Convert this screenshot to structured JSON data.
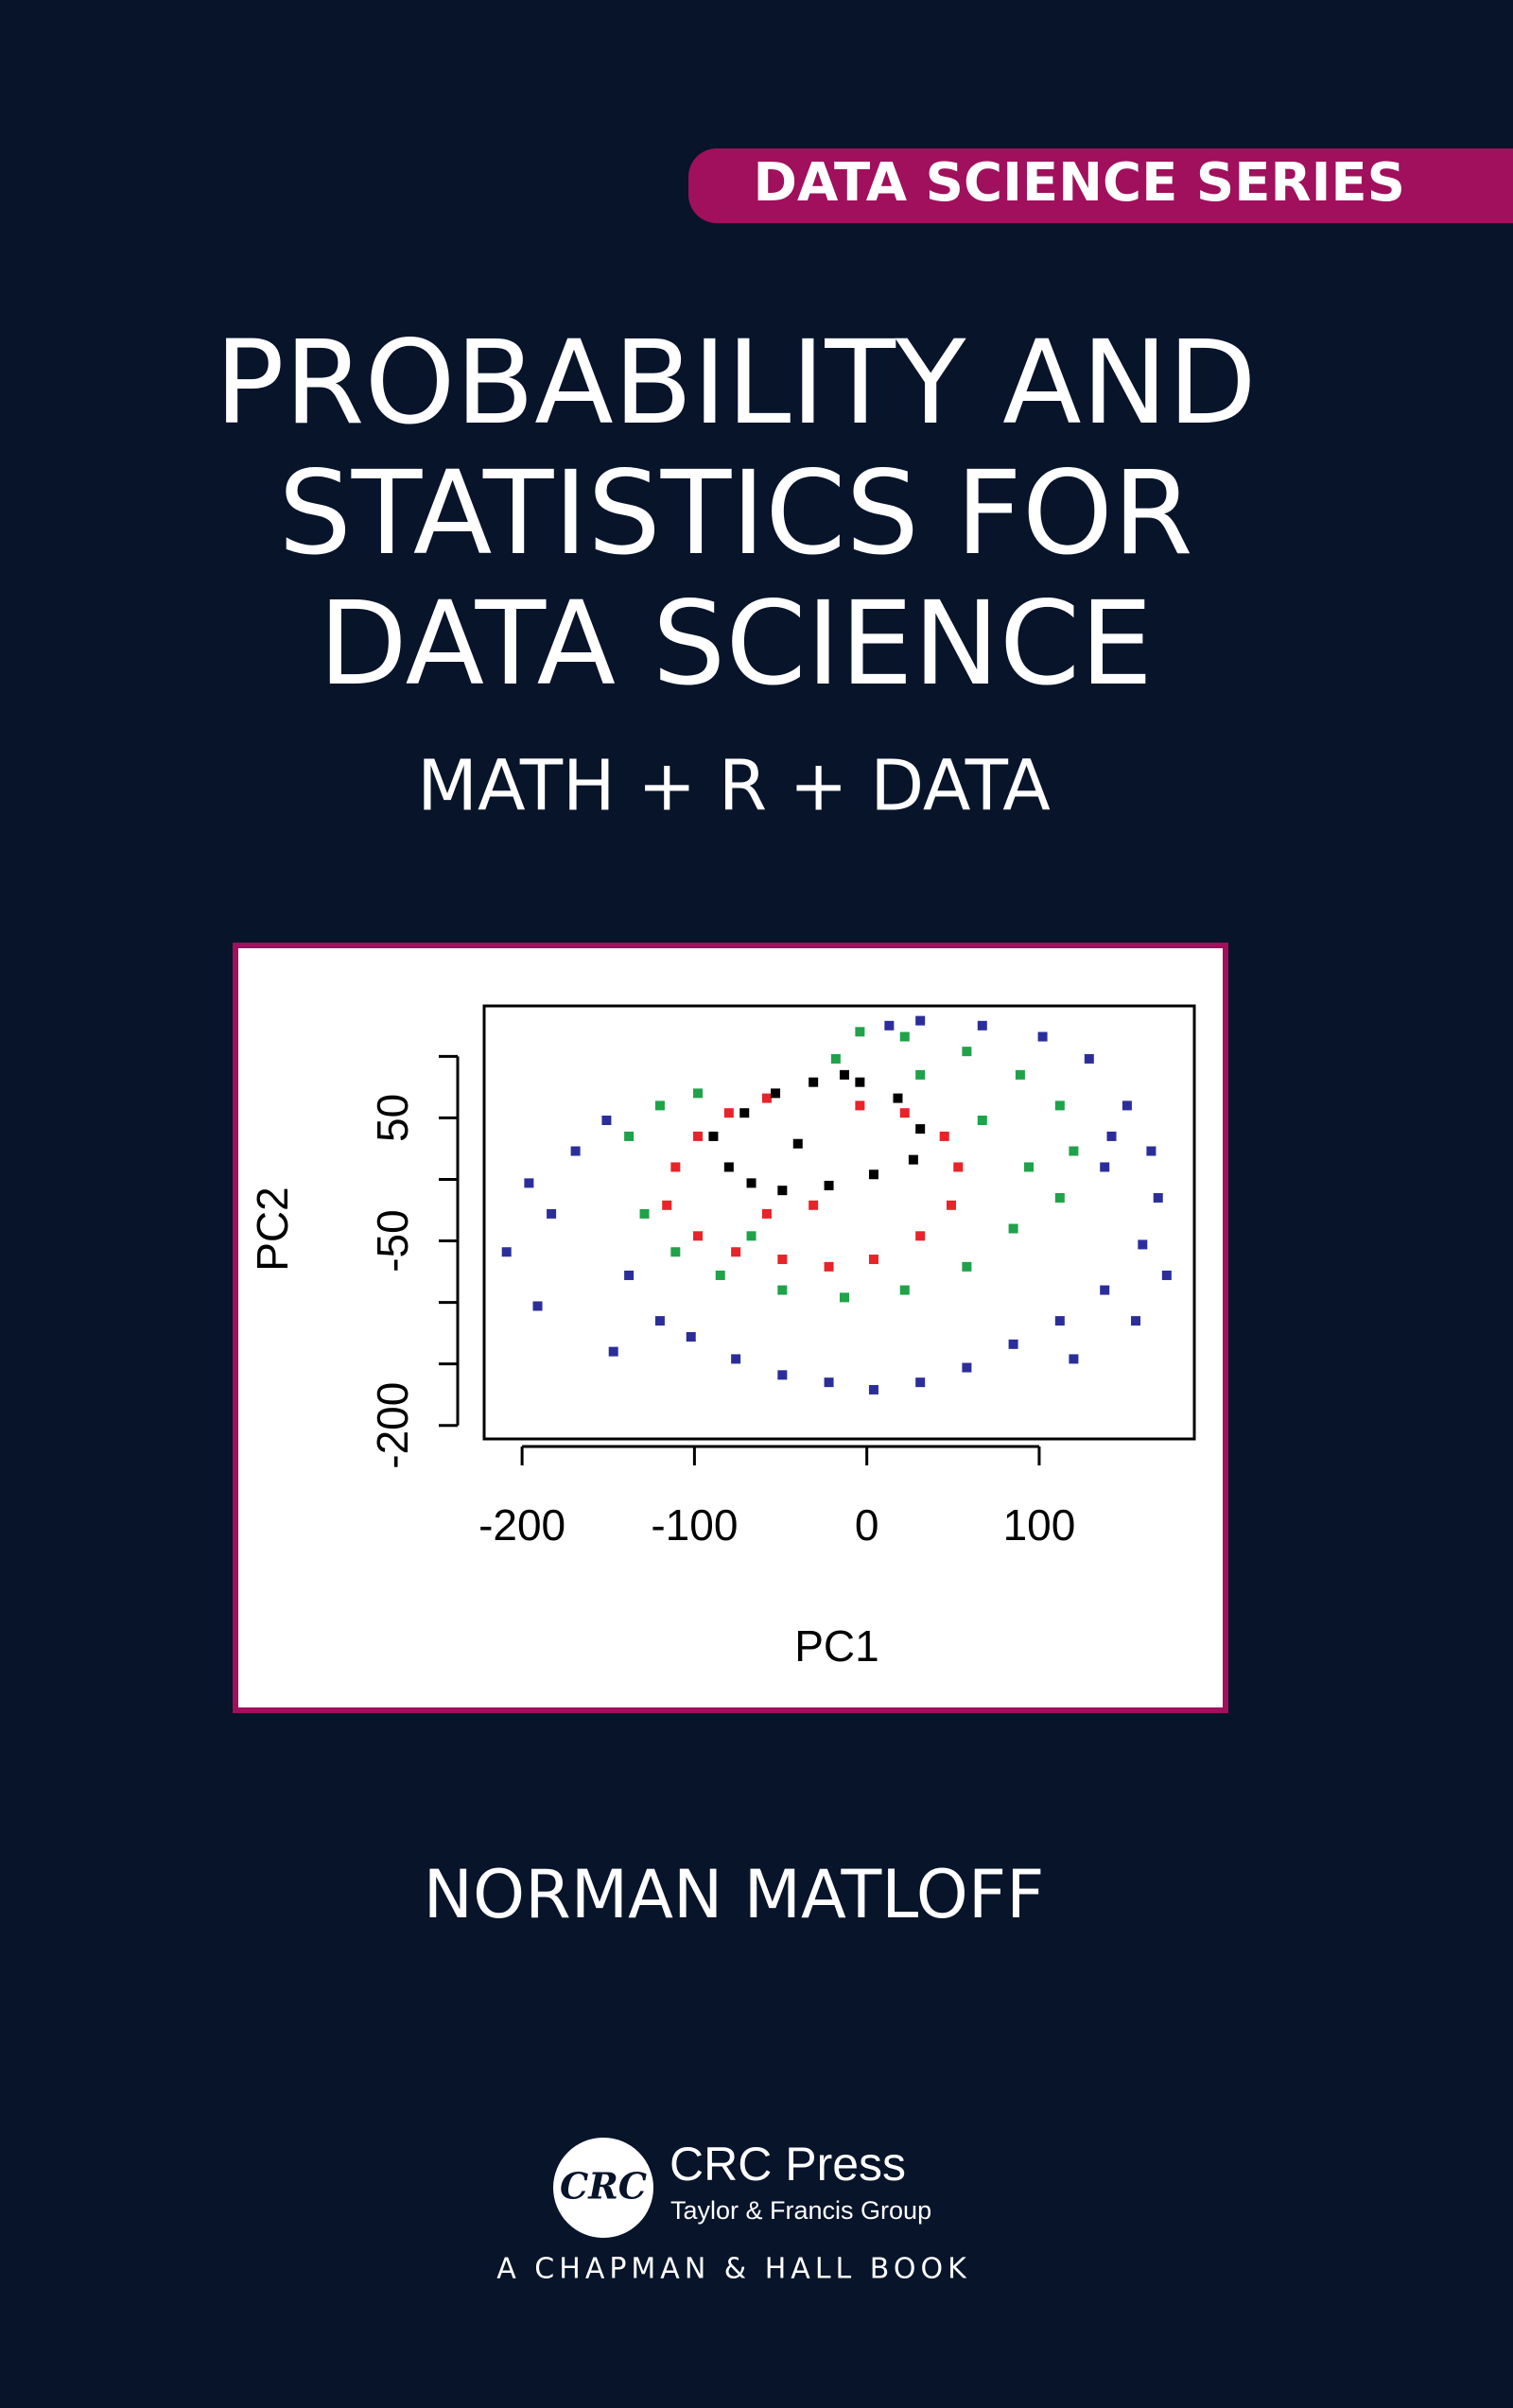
{
  "banner": "DATA SCIENCE SERIES",
  "title": [
    "PROBABILITY AND",
    "STATISTICS FOR",
    "DATA SCIENCE"
  ],
  "subtitle": "MATH + R + DATA",
  "chart_data": {
    "type": "scatter",
    "xlabel": "PC1",
    "ylabel": "PC2",
    "xlim": [
      -222,
      190
    ],
    "ylim": [
      -211,
      141
    ],
    "xticks": [
      -200,
      -100,
      0,
      100
    ],
    "yticks": [
      -200,
      {
        "value": -150,
        "label": null
      },
      {
        "value": -100,
        "label": null
      },
      -50,
      {
        "value": 0,
        "label": null
      },
      50,
      {
        "value": 100,
        "label": null
      }
    ],
    "series": [
      {
        "color": "#2b2e9a",
        "x": [
          -209,
          -196,
          -183,
          -169,
          -151,
          -138,
          -120,
          -102,
          -76,
          -49,
          -22,
          4,
          31,
          58,
          85,
          112,
          138,
          160,
          169,
          165,
          151,
          129,
          102,
          67,
          31,
          13,
          -191,
          -147,
          120,
          156,
          174,
          138,
          142
        ],
        "y": [
          -59,
          -3,
          -28,
          23,
          48,
          -78,
          -115,
          -128,
          -146,
          -159,
          -165,
          -171,
          -165,
          -153,
          -134,
          -115,
          -90,
          -53,
          -15,
          23,
          60,
          98,
          116,
          125,
          129,
          125,
          -103,
          -140,
          -146,
          -115,
          -78,
          10,
          35
        ]
      },
      {
        "color": "#1fa24a",
        "x": [
          -138,
          -120,
          -98,
          -129,
          -111,
          -85,
          -49,
          -13,
          22,
          58,
          85,
          112,
          120,
          112,
          89,
          58,
          22,
          -4,
          -18,
          31,
          67,
          94,
          -67
        ],
        "y": [
          35,
          60,
          70,
          -28,
          -59,
          -78,
          -90,
          -96,
          -90,
          -71,
          -40,
          -15,
          23,
          60,
          85,
          104,
          116,
          120,
          98,
          85,
          48,
          10,
          -46
        ]
      },
      {
        "color": "#e8232a",
        "x": [
          -111,
          -98,
          -80,
          -58,
          -116,
          -98,
          -76,
          -49,
          -22,
          4,
          31,
          49,
          53,
          45,
          22,
          -4,
          -31,
          -58
        ],
        "y": [
          10,
          35,
          54,
          66,
          -21,
          -46,
          -59,
          -65,
          -71,
          -65,
          -46,
          -21,
          10,
          35,
          54,
          60,
          -21,
          -28
        ]
      },
      {
        "color": "#000000",
        "x": [
          -89,
          -80,
          -67,
          -49,
          -22,
          4,
          27,
          31,
          18,
          -4,
          -31,
          -53,
          -71,
          -13,
          -40
        ],
        "y": [
          35,
          10,
          -3,
          -9,
          -5,
          4,
          16,
          41,
          66,
          79,
          79,
          70,
          54,
          85,
          29
        ]
      }
    ]
  },
  "author": "NORMAN MATLOFF",
  "publisher": {
    "logo": "CRC",
    "name": "CRC Press",
    "group": "Taylor & Francis Group",
    "imprint": "A CHAPMAN & HALL BOOK"
  }
}
